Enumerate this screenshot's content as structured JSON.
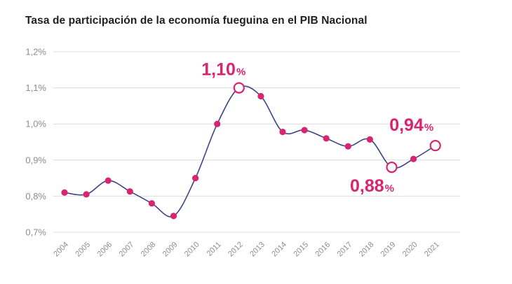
{
  "chart_data": {
    "type": "line",
    "title": "Tasa de participación de la economía fueguina en el PIB Nacional",
    "x": [
      "2004",
      "2005",
      "2006",
      "2007",
      "2008",
      "2009",
      "2010",
      "2011",
      "2012",
      "2013",
      "2014",
      "2015",
      "2016",
      "2017",
      "2018",
      "2019",
      "2020",
      "2021"
    ],
    "series": [
      {
        "values": [
          0.81,
          0.805,
          0.843,
          0.813,
          0.78,
          0.745,
          0.85,
          1.0,
          1.1,
          1.077,
          0.978,
          0.983,
          0.96,
          0.938,
          0.957,
          0.88,
          0.903,
          0.94
        ]
      }
    ],
    "y_ticks": [
      "0,7%",
      "0,8%",
      "0,9%",
      "1,0%",
      "1,1%",
      "1,2%"
    ],
    "ylim": [
      0.7,
      1.2
    ],
    "grid": true,
    "highlights": [
      {
        "x": "2012",
        "value": "1,10",
        "unit": "%"
      },
      {
        "x": "2019",
        "value": "0,88",
        "unit": "%"
      },
      {
        "x": "2021",
        "value": "0,94",
        "unit": "%"
      }
    ],
    "colors": {
      "line": "#3b4485",
      "points": "#d9246f",
      "annotation": "#d9246f"
    }
  }
}
